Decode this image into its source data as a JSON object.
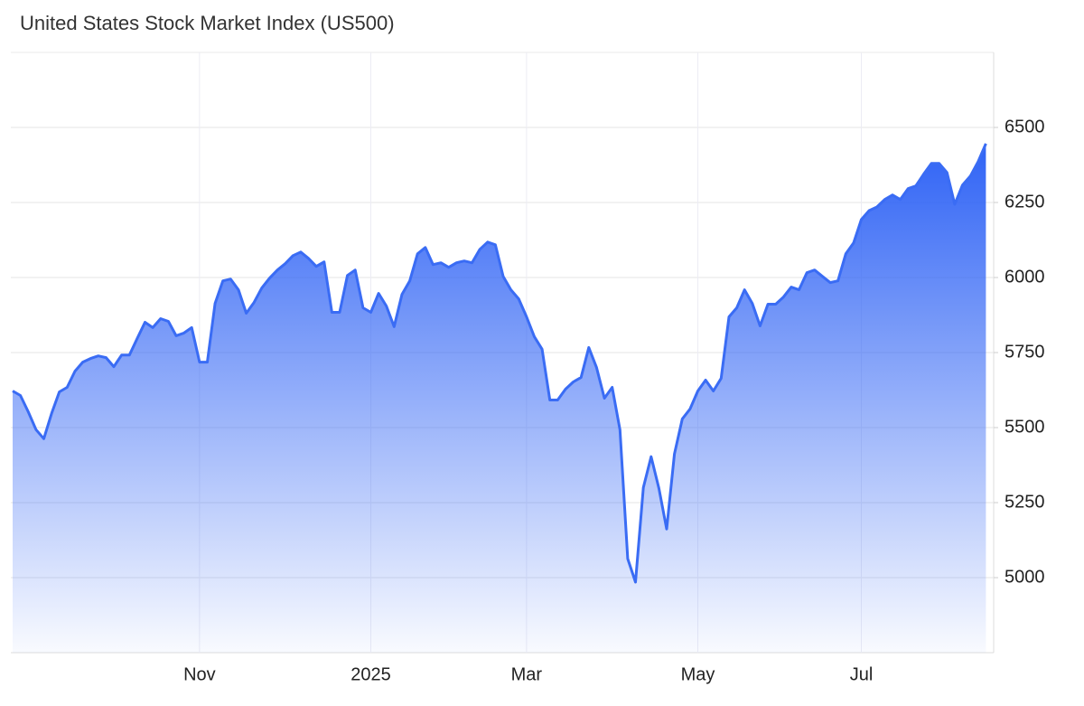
{
  "chart_data": {
    "type": "line",
    "title": "United States Stock Market Index (US500)",
    "categories": [
      null,
      null,
      null,
      null,
      null,
      null,
      null,
      null,
      null,
      null,
      null,
      null,
      null,
      null,
      null,
      null,
      null,
      null,
      null,
      null,
      null,
      null,
      null,
      null,
      "Nov",
      null,
      null,
      null,
      null,
      null,
      null,
      null,
      null,
      null,
      null,
      null,
      null,
      null,
      null,
      null,
      null,
      null,
      null,
      null,
      null,
      null,
      "2025",
      null,
      null,
      null,
      null,
      null,
      null,
      null,
      null,
      null,
      null,
      null,
      null,
      null,
      null,
      null,
      null,
      null,
      null,
      null,
      "Mar",
      null,
      null,
      null,
      null,
      null,
      null,
      null,
      null,
      null,
      null,
      null,
      null,
      null,
      null,
      null,
      null,
      null,
      null,
      null,
      null,
      null,
      "May",
      null,
      null,
      null,
      null,
      null,
      null,
      null,
      null,
      null,
      null,
      null,
      null,
      null,
      null,
      null,
      null,
      null,
      null,
      null,
      null,
      "Jul",
      null,
      null,
      null,
      null,
      null,
      null,
      null,
      null,
      null,
      null,
      null,
      null,
      null,
      null,
      null,
      null
    ],
    "values": [
      5622,
      5607,
      5553,
      5493,
      5463,
      5547,
      5619,
      5634,
      5688,
      5718,
      5730,
      5739,
      5733,
      5703,
      5742,
      5742,
      5797,
      5851,
      5833,
      5863,
      5854,
      5806,
      5815,
      5833,
      5718,
      5718,
      5914,
      5989,
      5995,
      5959,
      5881,
      5917,
      5965,
      5998,
      6025,
      6046,
      6073,
      6085,
      6064,
      6037,
      6052,
      5884,
      5884,
      6007,
      6025,
      5899,
      5884,
      5947,
      5905,
      5836,
      5944,
      5989,
      6079,
      6100,
      6043,
      6049,
      6034,
      6049,
      6055,
      6049,
      6094,
      6118,
      6109,
      6004,
      5959,
      5929,
      5869,
      5803,
      5761,
      5592,
      5592,
      5628,
      5652,
      5667,
      5767,
      5700,
      5598,
      5634,
      5493,
      5063,
      4985,
      5300,
      5403,
      5298,
      5162,
      5412,
      5529,
      5562,
      5622,
      5658,
      5622,
      5664,
      5869,
      5899,
      5959,
      5914,
      5839,
      5911,
      5911,
      5935,
      5968,
      5959,
      6016,
      6025,
      6004,
      5983,
      5989,
      6079,
      6115,
      6193,
      6223,
      6235,
      6260,
      6275,
      6260,
      6296,
      6305,
      6344,
      6380,
      6380,
      6350,
      6244,
      6308,
      6338,
      6386,
      6446
    ],
    "color": "#3a6cf4",
    "ylim": [
      4750,
      6750
    ],
    "yticks": [
      5000,
      5250,
      5500,
      5750,
      6000,
      6250,
      6500
    ],
    "grid": true
  }
}
